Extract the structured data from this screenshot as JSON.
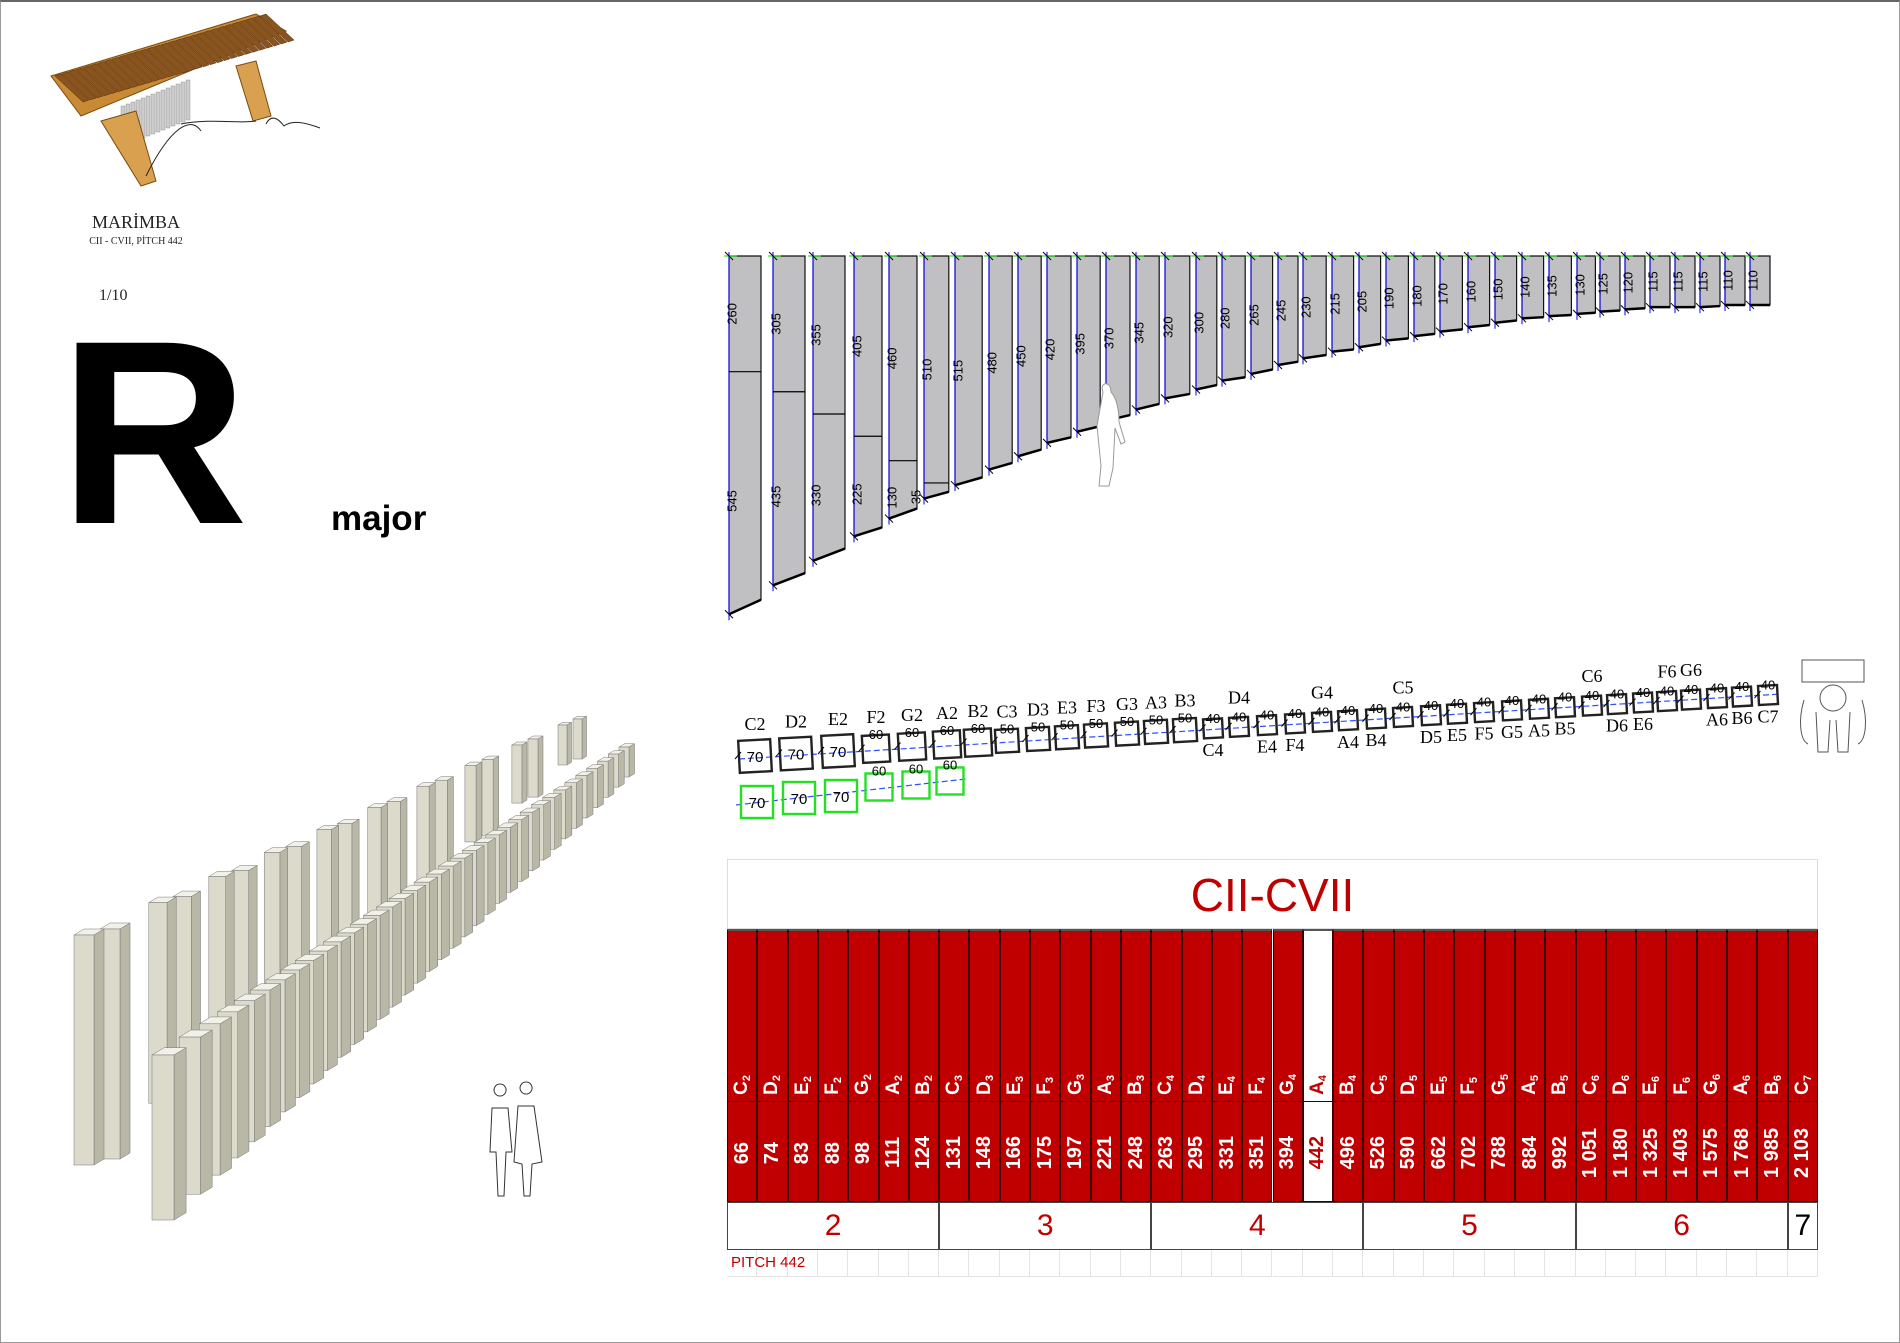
{
  "header": {
    "title": "MARİMBA",
    "subtitle": "CII - CVII, PİTCH 442",
    "scale": "1/10",
    "big_letter": "R",
    "scale_type": "major"
  },
  "colors": {
    "table_red": "#c00000",
    "dimension_blue": "#0000ff",
    "tick_green": "#00e000",
    "bar_gray": "#c0bfc2"
  },
  "bars": {
    "notes": [
      "C2",
      "D2",
      "E2",
      "F2",
      "G2",
      "A2",
      "B2",
      "C3",
      "D3",
      "E3",
      "F3",
      "G3",
      "A3",
      "B3",
      "C4",
      "D4",
      "E4",
      "F4",
      "G4",
      "A4",
      "B4",
      "C5",
      "D5",
      "E5",
      "F5",
      "G5",
      "A5",
      "B5",
      "C6",
      "D6",
      "E6",
      "F6",
      "G6",
      "A6",
      "B6",
      "C7"
    ],
    "upper_lengths": [
      "260",
      "305",
      "355",
      "405",
      "460",
      "510",
      "515",
      "480",
      "450",
      "420",
      "395",
      "370",
      "345",
      "320",
      "300",
      "280",
      "265",
      "245",
      "230",
      "215",
      "205",
      "190",
      "180",
      "170",
      "160",
      "150",
      "140",
      "135",
      "130",
      "125",
      "120",
      "115",
      "115",
      "115",
      "110",
      "110"
    ],
    "lower_lengths": [
      "545",
      "435",
      "330",
      "225",
      "130",
      "35"
    ]
  },
  "keys": {
    "main_row": [
      {
        "note": "C2",
        "size": "70",
        "label": "above"
      },
      {
        "note": "D2",
        "size": "70",
        "label": "above"
      },
      {
        "note": "E2",
        "size": "70",
        "label": "above"
      },
      {
        "note": "F2",
        "size": "60",
        "label": "above"
      },
      {
        "note": "G2",
        "size": "60",
        "label": "above"
      },
      {
        "note": "A2",
        "size": "60",
        "label": "above"
      },
      {
        "note": "B2",
        "size": "60",
        "label": "above"
      },
      {
        "note": "C3",
        "size": "50",
        "label": "above"
      },
      {
        "note": "D3",
        "size": "50",
        "label": "above"
      },
      {
        "note": "E3",
        "size": "50",
        "label": "above"
      },
      {
        "note": "F3",
        "size": "50",
        "label": "above"
      },
      {
        "note": "G3",
        "size": "50",
        "label": "above"
      },
      {
        "note": "A3",
        "size": "50",
        "label": "above"
      },
      {
        "note": "B3",
        "size": "50",
        "label": "above"
      },
      {
        "note": "C4",
        "size": "40",
        "label": "below"
      },
      {
        "note": "D4",
        "size": "40",
        "label": "above"
      },
      {
        "note": "E4",
        "size": "40",
        "label": "below"
      },
      {
        "note": "F4",
        "size": "40",
        "label": "below"
      },
      {
        "note": "G4",
        "size": "40",
        "label": "above"
      },
      {
        "note": "A4",
        "size": "40",
        "label": "below"
      },
      {
        "note": "B4",
        "size": "40",
        "label": "below"
      },
      {
        "note": "C5",
        "size": "40",
        "label": "above"
      },
      {
        "note": "D5",
        "size": "40",
        "label": "below"
      },
      {
        "note": "E5",
        "size": "40",
        "label": "below"
      },
      {
        "note": "F5",
        "size": "40",
        "label": "below"
      },
      {
        "note": "G5",
        "size": "40",
        "label": "below"
      },
      {
        "note": "A5",
        "size": "40",
        "label": "below"
      },
      {
        "note": "B5",
        "size": "40",
        "label": "below"
      },
      {
        "note": "C6",
        "size": "40",
        "label": "above"
      },
      {
        "note": "D6",
        "size": "40",
        "label": "below"
      },
      {
        "note": "E6",
        "size": "40",
        "label": "below"
      },
      {
        "note": "F6",
        "size": "40",
        "label": "above"
      },
      {
        "note": "G6",
        "size": "40",
        "label": "above"
      },
      {
        "note": "A6",
        "size": "40",
        "label": "below"
      },
      {
        "note": "B6",
        "size": "40",
        "label": "below"
      },
      {
        "note": "C7",
        "size": "40",
        "label": "below"
      }
    ],
    "green_row": [
      "70",
      "70",
      "70",
      "60",
      "60",
      "60"
    ]
  },
  "table": {
    "title": "CII-CVII",
    "columns": [
      {
        "note": "C",
        "octave": "2",
        "freq": "66"
      },
      {
        "note": "D",
        "octave": "2",
        "freq": "74"
      },
      {
        "note": "E",
        "octave": "2",
        "freq": "83"
      },
      {
        "note": "F",
        "octave": "2",
        "freq": "88"
      },
      {
        "note": "G",
        "octave": "2",
        "freq": "98"
      },
      {
        "note": "A",
        "octave": "2",
        "freq": "111"
      },
      {
        "note": "B",
        "octave": "2",
        "freq": "124"
      },
      {
        "note": "C",
        "octave": "3",
        "freq": "131"
      },
      {
        "note": "D",
        "octave": "3",
        "freq": "148"
      },
      {
        "note": "E",
        "octave": "3",
        "freq": "166"
      },
      {
        "note": "F",
        "octave": "3",
        "freq": "175"
      },
      {
        "note": "G",
        "octave": "3",
        "freq": "197"
      },
      {
        "note": "A",
        "octave": "3",
        "freq": "221"
      },
      {
        "note": "B",
        "octave": "3",
        "freq": "248"
      },
      {
        "note": "C",
        "octave": "4",
        "freq": "263"
      },
      {
        "note": "D",
        "octave": "4",
        "freq": "295"
      },
      {
        "note": "E",
        "octave": "4",
        "freq": "331"
      },
      {
        "note": "F",
        "octave": "4",
        "freq": "351"
      },
      {
        "note": "G",
        "octave": "4",
        "freq": "394"
      },
      {
        "note": "A",
        "octave": "4",
        "freq": "442",
        "highlight": true
      },
      {
        "note": "B",
        "octave": "4",
        "freq": "496"
      },
      {
        "note": "C",
        "octave": "5",
        "freq": "526"
      },
      {
        "note": "D",
        "octave": "5",
        "freq": "590"
      },
      {
        "note": "E",
        "octave": "5",
        "freq": "662"
      },
      {
        "note": "F",
        "octave": "5",
        "freq": "702"
      },
      {
        "note": "G",
        "octave": "5",
        "freq": "788"
      },
      {
        "note": "A",
        "octave": "5",
        "freq": "884"
      },
      {
        "note": "B",
        "octave": "5",
        "freq": "992"
      },
      {
        "note": "C",
        "octave": "6",
        "freq": "1 051"
      },
      {
        "note": "D",
        "octave": "6",
        "freq": "1 180"
      },
      {
        "note": "E",
        "octave": "6",
        "freq": "1 325"
      },
      {
        "note": "F",
        "octave": "6",
        "freq": "1 403"
      },
      {
        "note": "G",
        "octave": "6",
        "freq": "1 575"
      },
      {
        "note": "A",
        "octave": "6",
        "freq": "1 768"
      },
      {
        "note": "B",
        "octave": "6",
        "freq": "1 985"
      },
      {
        "note": "C",
        "octave": "7",
        "freq": "2 103"
      }
    ],
    "octaves": [
      {
        "label": "2",
        "span": 7
      },
      {
        "label": "3",
        "span": 7
      },
      {
        "label": "4",
        "span": 7
      },
      {
        "label": "5",
        "span": 7
      },
      {
        "label": "6",
        "span": 7
      },
      {
        "label": "7",
        "span": 1
      }
    ],
    "pitch_label": "PITCH 442"
  }
}
